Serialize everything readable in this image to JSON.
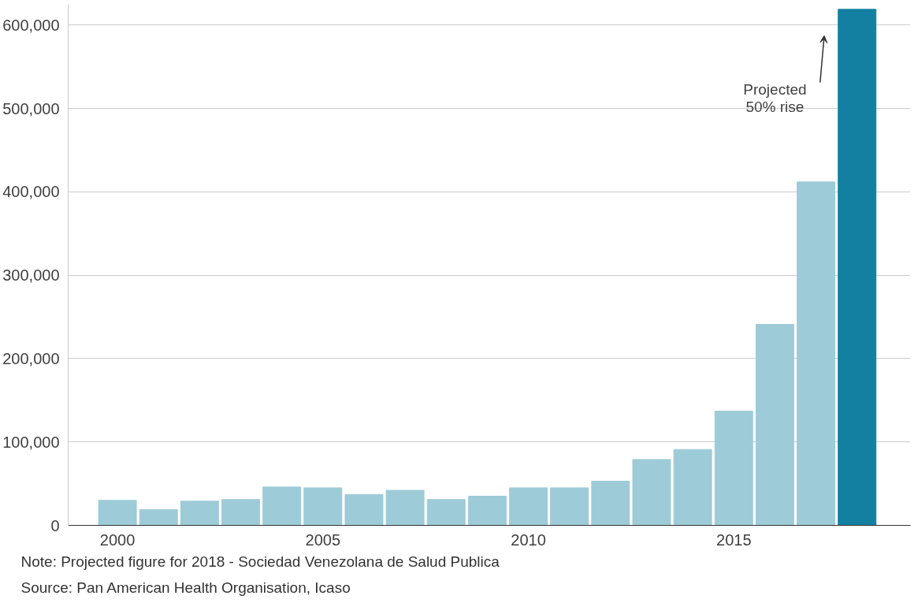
{
  "chart_data": {
    "type": "bar",
    "x": [
      2000,
      2001,
      2002,
      2003,
      2004,
      2005,
      2006,
      2007,
      2008,
      2009,
      2010,
      2011,
      2012,
      2013,
      2014,
      2015,
      2016,
      2017,
      2018
    ],
    "values": [
      30000,
      19000,
      29000,
      31000,
      46000,
      45000,
      37000,
      42000,
      31000,
      35000,
      45000,
      45000,
      53000,
      79000,
      91000,
      137000,
      241000,
      412000,
      619000
    ],
    "colors": [
      "#9ecbd8",
      "#9ecbd8",
      "#9ecbd8",
      "#9ecbd8",
      "#9ecbd8",
      "#9ecbd8",
      "#9ecbd8",
      "#9ecbd8",
      "#9ecbd8",
      "#9ecbd8",
      "#9ecbd8",
      "#9ecbd8",
      "#9ecbd8",
      "#9ecbd8",
      "#9ecbd8",
      "#9ecbd8",
      "#9ecbd8",
      "#9ecbd8",
      "#1380a1"
    ],
    "xlim": [
      1998.8,
      2019.3
    ],
    "xticks": [
      2000,
      2005,
      2010,
      2015
    ],
    "ylim": [
      0,
      625000
    ],
    "yticks": [
      {
        "value": 0,
        "label": "0"
      },
      {
        "value": 100000,
        "label": "100,000"
      },
      {
        "value": 200000,
        "label": "200,000"
      },
      {
        "value": 300000,
        "label": "300,000"
      },
      {
        "value": 400000,
        "label": "400,000"
      },
      {
        "value": 500000,
        "label": "500,000"
      },
      {
        "value": 600000,
        "label": "600,000"
      }
    ],
    "grid": "y",
    "annotations": [
      "Projected\n50% rise",
      "Note: Projected figure for 2018 - Sociedad Venezolana de Salud Publica",
      "Source: Pan American Health Organisation, Icaso"
    ]
  }
}
